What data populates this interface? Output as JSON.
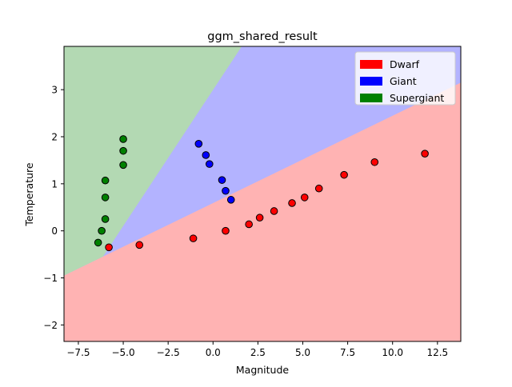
{
  "chart_data": {
    "type": "scatter",
    "title": "ggm_shared_result",
    "xlabel": "Magnitude",
    "ylabel": "Temperature",
    "xlim": [
      -8.3,
      13.8
    ],
    "ylim": [
      -2.35,
      3.92
    ],
    "xticks": [
      -7.5,
      -5.0,
      -2.5,
      0.0,
      2.5,
      5.0,
      7.5,
      10.0,
      12.5
    ],
    "xtick_labels": [
      "−7.5",
      "−5.0",
      "−2.5",
      "0.0",
      "2.5",
      "5.0",
      "7.5",
      "10.0",
      "12.5"
    ],
    "yticks": [
      -2,
      -1,
      0,
      1,
      2,
      3
    ],
    "ytick_labels": [
      "−2",
      "−1",
      "0",
      "1",
      "2",
      "3"
    ],
    "legend_position": "top-right",
    "regions": {
      "description": "decision regions: Dwarf below lower boundary, Giant between boundaries, Supergiant above upper boundary",
      "lower_boundary": [
        [
          -8.3,
          -0.95
        ],
        [
          13.8,
          3.15
        ]
      ],
      "upper_boundary": [
        [
          -5.7,
          -0.3
        ],
        [
          1.6,
          3.92
        ]
      ],
      "colors": {
        "Dwarf": "#ffb3b3",
        "Giant": "#b3b3ff",
        "Supergiant": "#b3d9b3"
      }
    },
    "series": [
      {
        "name": "Dwarf",
        "color": "#ff0000",
        "points": [
          [
            -5.8,
            -0.35
          ],
          [
            -4.1,
            -0.3
          ],
          [
            -1.1,
            -0.16
          ],
          [
            0.7,
            0.0
          ],
          [
            2.0,
            0.14
          ],
          [
            2.6,
            0.28
          ],
          [
            3.4,
            0.42
          ],
          [
            4.4,
            0.59
          ],
          [
            5.1,
            0.71
          ],
          [
            5.9,
            0.9
          ],
          [
            7.3,
            1.19
          ],
          [
            9.0,
            1.46
          ],
          [
            11.8,
            1.64
          ]
        ]
      },
      {
        "name": "Giant",
        "color": "#0000ff",
        "points": [
          [
            -0.8,
            1.85
          ],
          [
            -0.4,
            1.61
          ],
          [
            -0.2,
            1.42
          ],
          [
            0.5,
            1.08
          ],
          [
            0.7,
            0.85
          ],
          [
            1.0,
            0.66
          ]
        ]
      },
      {
        "name": "Supergiant",
        "color": "#008000",
        "points": [
          [
            -5.0,
            1.95
          ],
          [
            -5.0,
            1.7
          ],
          [
            -5.0,
            1.4
          ],
          [
            -6.0,
            1.07
          ],
          [
            -6.0,
            0.71
          ],
          [
            -6.0,
            0.25
          ],
          [
            -6.2,
            0.0
          ],
          [
            -6.4,
            -0.25
          ]
        ]
      }
    ]
  }
}
